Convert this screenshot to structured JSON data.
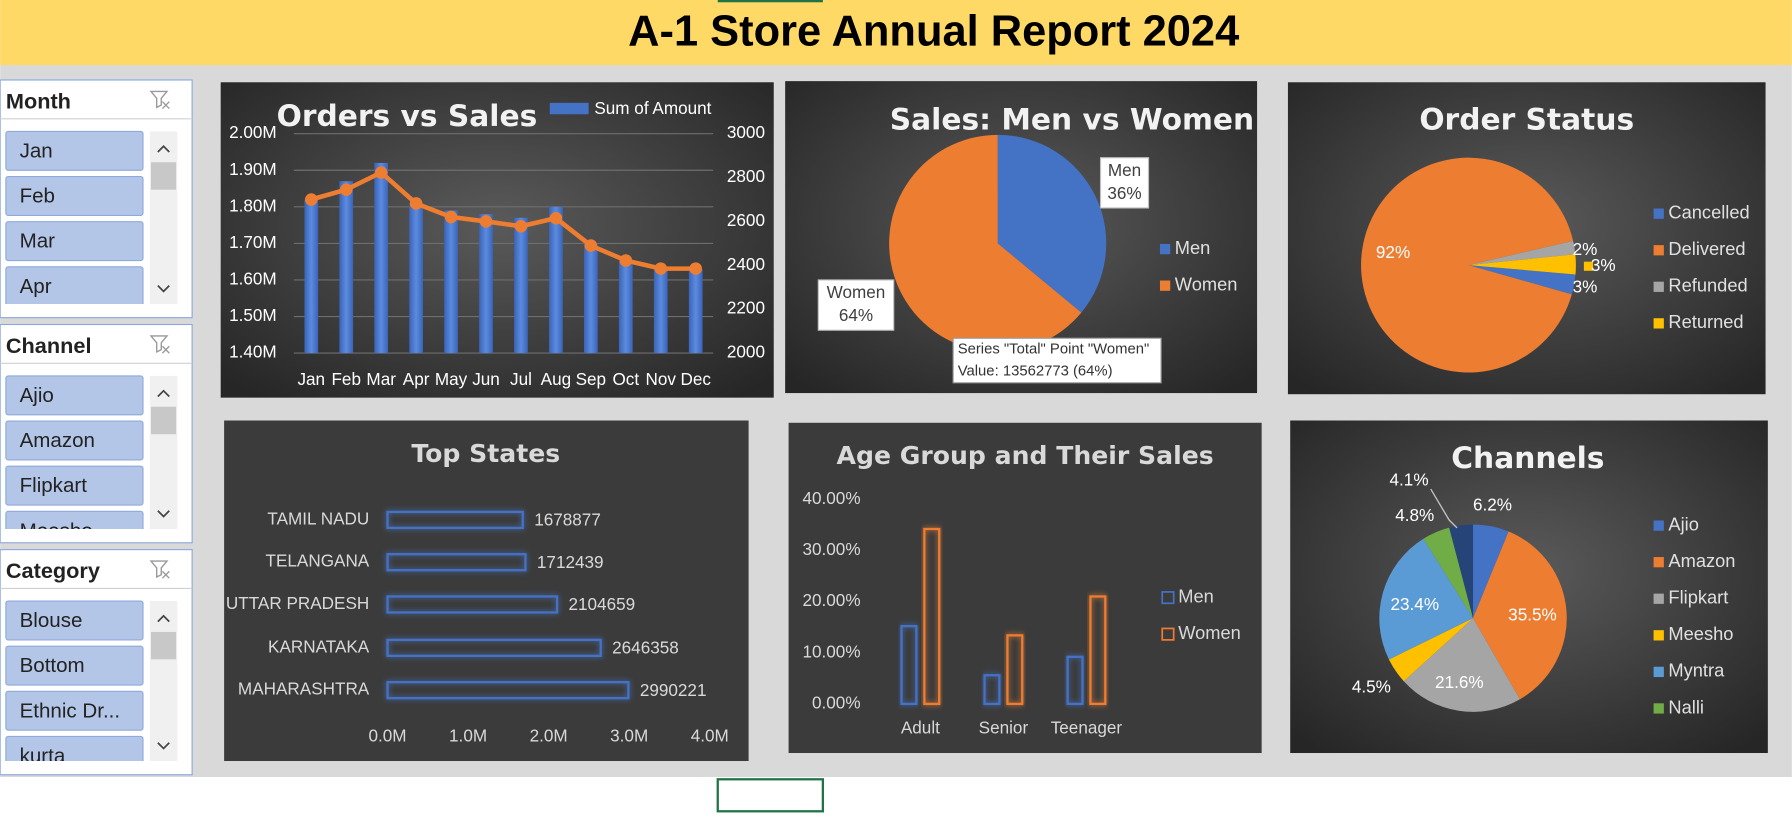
{
  "title": "A-1 Store Annual Report 2024",
  "slicers": [
    {
      "title": "Month",
      "items": [
        "Jan",
        "Feb",
        "Mar",
        "Apr"
      ]
    },
    {
      "title": "Channel",
      "items": [
        "Ajio",
        "Amazon",
        "Flipkart",
        "Meesho"
      ]
    },
    {
      "title": "Category",
      "items": [
        "Blouse",
        "Bottom",
        "Ethnic Dr...",
        "kurta"
      ]
    }
  ],
  "chart_data": [
    {
      "type": "combo",
      "title": "Orders vs Sales",
      "categories": [
        "Jan",
        "Feb",
        "Mar",
        "Apr",
        "May",
        "Jun",
        "Jul",
        "Aug",
        "Sep",
        "Oct",
        "Nov",
        "Dec"
      ],
      "series": [
        {
          "name": "Sum of Amount",
          "type": "bar",
          "color": "#4472c4",
          "values": [
            1820000,
            1870000,
            1920000,
            1810000,
            1790000,
            1780000,
            1770000,
            1800000,
            1700000,
            1650000,
            1630000,
            1630000
          ]
        },
        {
          "type": "line",
          "axis": "y2",
          "color": "#ed7d31",
          "values": [
            2700,
            2745,
            2823,
            2682,
            2620,
            2600,
            2578,
            2615,
            2490,
            2422,
            2385,
            2385
          ]
        }
      ],
      "ylim": [
        1400000,
        2000000
      ],
      "yticks": [
        {
          "value": 1400000,
          "label": "1.40M"
        },
        {
          "value": 1500000,
          "label": "1.50M"
        },
        {
          "value": 1600000,
          "label": "1.60M"
        },
        {
          "value": 1700000,
          "label": "1.70M"
        },
        {
          "value": 1800000,
          "label": "1.80M"
        },
        {
          "value": 1900000,
          "label": "1.90M"
        },
        {
          "value": 2000000,
          "label": "2.00M"
        }
      ],
      "y2lim": [
        2000,
        3000
      ],
      "y2ticks": [
        2000,
        2200,
        2400,
        2600,
        2800,
        3000
      ],
      "grid": true,
      "legend": "top"
    },
    {
      "type": "pie",
      "title": "Sales: Men vs Women",
      "categories": [
        "Men",
        "Women"
      ],
      "values": [
        36,
        64
      ],
      "value_labels": [
        "36%",
        "64%"
      ],
      "colors": [
        "#4472c4",
        "#ed7d31"
      ],
      "legend": "right",
      "tooltip": [
        "Series \"Total\" Point \"Women\"",
        "Value: 13562773 (64%)"
      ]
    },
    {
      "type": "pie",
      "title": "Order Status",
      "categories": [
        "Cancelled",
        "Delivered",
        "Refunded",
        "Returned"
      ],
      "values": [
        3,
        92,
        2,
        3
      ],
      "value_labels": [
        "3%",
        "92%",
        "2%",
        "3%"
      ],
      "colors": [
        "#4472c4",
        "#ed7d31",
        "#a5a5a5",
        "#ffc000"
      ],
      "legend": "right"
    },
    {
      "type": "hbar",
      "title": "Top States",
      "categories": [
        "TAMIL NADU",
        "TELANGANA",
        "UTTAR PRADESH",
        "KARNATAKA",
        "MAHARASHTRA"
      ],
      "values": [
        1678877,
        1712439,
        2104659,
        2646358,
        2990221
      ],
      "color": "#4472c4",
      "xlim": [
        0,
        4000000
      ],
      "xticks": [
        {
          "value": 0,
          "label": "0.0M"
        },
        {
          "value": 1000000,
          "label": "1.0M"
        },
        {
          "value": 2000000,
          "label": "2.0M"
        },
        {
          "value": 3000000,
          "label": "3.0M"
        },
        {
          "value": 4000000,
          "label": "4.0M"
        }
      ]
    },
    {
      "type": "bar",
      "title": "Age Group and Their Sales",
      "categories": [
        "Adult",
        "Senior",
        "Teenager"
      ],
      "series": [
        {
          "name": "Men",
          "color": "#4472c4",
          "values": [
            15.2,
            5.6,
            9.2
          ]
        },
        {
          "name": "Women",
          "color": "#ed7d31",
          "values": [
            34.2,
            13.4,
            21.0
          ]
        }
      ],
      "ylim": [
        0,
        40
      ],
      "yticks": [
        {
          "value": 0,
          "label": "0.00%"
        },
        {
          "value": 10,
          "label": "10.00%"
        },
        {
          "value": 20,
          "label": "20.00%"
        },
        {
          "value": 30,
          "label": "30.00%"
        },
        {
          "value": 40,
          "label": "40.00%"
        }
      ],
      "legend": "right"
    },
    {
      "type": "pie",
      "title": "Channels",
      "categories": [
        "Ajio",
        "Amazon",
        "Flipkart",
        "Meesho",
        "Myntra",
        "Nalli",
        null
      ],
      "values": [
        6.2,
        35.5,
        21.6,
        4.5,
        23.4,
        4.8,
        4.1
      ],
      "value_labels": [
        "6.2%",
        "35.5%",
        "21.6%",
        "4.5%",
        "23.4%",
        "4.8%",
        "4.1%"
      ],
      "colors": [
        "#4472c4",
        "#ed7d31",
        "#a5a5a5",
        "#ffc000",
        "#5b9bd5",
        "#70ad47",
        "#264478"
      ],
      "legend": "right"
    }
  ]
}
